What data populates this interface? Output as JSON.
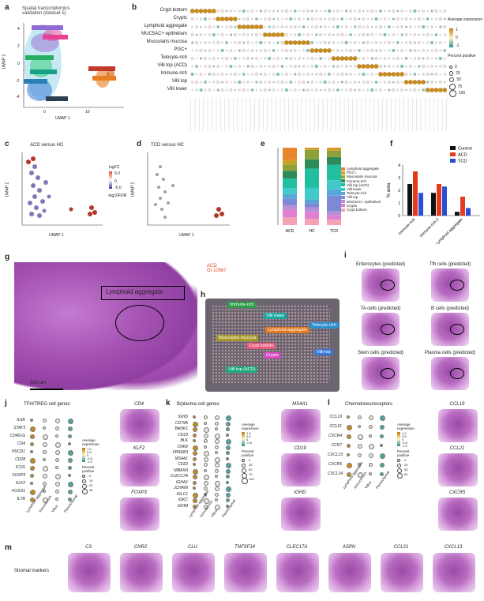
{
  "panels": {
    "a": {
      "letter": "a",
      "title_l1": "Spatial transcriptomics",
      "title_l2": "validation (dataset 5)",
      "xlabel": "UMAP 1",
      "ylabel": "UMAP 2",
      "xticks": [
        "0",
        "10"
      ],
      "yticks": [
        "4",
        "2",
        "0",
        "-2",
        "-4"
      ]
    },
    "b": {
      "letter": "b",
      "rows": [
        "Crypt bottom",
        "Crypts",
        "Lymphoid aggregate",
        "MUC5AC+ epithelium",
        "Muscularis mucosa",
        "PGC+",
        "Telocyte-rich",
        "Villi top (ACD)",
        "Immune-rich",
        "Villi top",
        "Villi lower"
      ],
      "legend_expr_title": "Average expression",
      "legend_expr_ticks": [
        "1",
        "0",
        "-1"
      ],
      "legend_pct_title": "Percent positive",
      "legend_pct_ticks": [
        "0",
        "25",
        "50",
        "75",
        "100"
      ]
    },
    "c": {
      "letter": "c",
      "title": "ACD versus HC",
      "xlabel": "UMAP 1",
      "ylabel": "UMAP 2",
      "legend_title": "logFC",
      "legend_ticks": [
        "5.0",
        "2.5",
        "0",
        "-2.5",
        "-5.0"
      ],
      "size_title": "-log10FDR",
      "size_ticks": [
        "0",
        "2",
        "4"
      ],
      "xticks": [
        "-5",
        "0",
        "5",
        "10",
        "15"
      ],
      "yticks": [
        "4",
        "2",
        "0",
        "-2",
        "-4"
      ]
    },
    "d": {
      "letter": "d",
      "title": "TCD versus HC",
      "xlabel": "UMAP 1",
      "ylabel": "UMAP 2",
      "xticks": [
        "-5",
        "0",
        "5",
        "10",
        "15"
      ],
      "yticks": [
        "4",
        "2",
        "0",
        "-2",
        "-4"
      ]
    },
    "e": {
      "letter": "e",
      "legend": [
        "Lymphoid aggregate",
        "PGC+",
        "Muscularis mucosa",
        "Immune-rich",
        "Villi top (ACD)",
        "Villi lower",
        "Telocyte-rich",
        "Villi top",
        "MUC5AC+ epithelium",
        "Crypts",
        "Crypt bottom"
      ],
      "legend_colors": [
        "#e8842a",
        "#c9a227",
        "#8fa23a",
        "#2e8b57",
        "#1fbfa0",
        "#3fc9c9",
        "#58a6d8",
        "#7c8ad6",
        "#b58fd9",
        "#e07fd0",
        "#f4a3b5"
      ],
      "categories": [
        "ACD",
        "HC",
        "TCD"
      ]
    },
    "f": {
      "letter": "f",
      "ylabel": "% area",
      "yticks": [
        "4",
        "3",
        "2",
        "1",
        "0"
      ],
      "categories": [
        "Immune-rich",
        "Immune-rich 2",
        "Lymphoid aggregate"
      ],
      "series_names": [
        "Control",
        "ACD",
        "TCD"
      ]
    },
    "g": {
      "letter": "g",
      "title_l1": "ACD",
      "title_l2": "GI 10567",
      "callout": "Lymphoid aggregate",
      "scalebar": "500 µm"
    },
    "h": {
      "letter": "h",
      "labels": [
        "Immune-rich",
        "Villi lower",
        "Telocyte-rich",
        "Lymphoid aggregate",
        "Muscularis mucosa",
        "Crypt bottom",
        "Villi top",
        "Crypts",
        "Villi top (ACD)"
      ]
    },
    "i": {
      "letter": "i",
      "titles": [
        "Enterocytes (predicted)",
        "Tfh cells (predicted)",
        "TA cells (predicted)",
        "B cells (predicted)",
        "Stem cells (predicted)",
        "Plasma cells (predicted)"
      ]
    },
    "j": {
      "letter": "j",
      "title": "TFH/TREG cell genes",
      "genes": [
        "IL6R",
        "STAT3",
        "CD40LG",
        "CD4",
        "PDCD1",
        "CD28",
        "ICOS",
        "FOXP3",
        "KLF2",
        "FOXO1",
        "IL7R"
      ],
      "xcats": [
        "Lymphoid aggregate",
        "Immune-rich",
        "Villus",
        "Parenchymal"
      ],
      "maps": [
        "CD4",
        "KLF2",
        "FOXP3"
      ],
      "expr_title": "Average expression",
      "expr_ticks": [
        "1.0",
        "0.5",
        "0",
        "-0.5",
        "-1.0"
      ],
      "pct_title": "Percent positive",
      "pct_ticks": [
        "0",
        "10",
        "20",
        "30"
      ]
    },
    "k": {
      "letter": "k",
      "title": "B/plasma cell genes",
      "genes": [
        "IGHD",
        "CD79A",
        "BANK1",
        "CD19",
        "BLK",
        "CNR2",
        "VPREB3",
        "MS4A1",
        "CD22",
        "NIBAN3",
        "CLEC17A",
        "IGHA1",
        "JCHAIN",
        "IGLC1",
        "IGKC",
        "IGHM"
      ],
      "xcats": [
        "Lymphoid aggregate",
        "Immune-rich",
        "Villus",
        "Parenchymal"
      ],
      "maps": [
        "MS4A1",
        "CD19",
        "IGHD"
      ],
      "expr_title": "Average expression",
      "expr_ticks": [
        "1.0",
        "0.5",
        "0",
        "-0.5"
      ],
      "pct_title": "Percent positive",
      "pct_ticks": [
        "0",
        "25",
        "50",
        "75",
        "100"
      ]
    },
    "l": {
      "letter": "l",
      "title": "Chemokines/receptors",
      "genes": [
        "CCL19",
        "CCL21",
        "CXCR4",
        "CCR7",
        "CXCL13",
        "CXCR5",
        "CXCL14"
      ],
      "xcats": [
        "Lymphoid aggregate",
        "Immune-rich",
        "Villus",
        "Parenchymal"
      ],
      "maps": [
        "CCL19",
        "CCL21",
        "CXCR5"
      ],
      "pct_title": "Percent positive",
      "pct_ticks": [
        "0",
        "20",
        "40",
        "60"
      ],
      "expr_title": "Average expression",
      "expr_ticks": [
        "1.0",
        "0.5",
        "0",
        "-0.5",
        "-1.0"
      ]
    },
    "m": {
      "letter": "m",
      "row_label": "Stromal markers",
      "maps": [
        "C3",
        "CNR2",
        "CLU",
        "TNFSF14",
        "CLEC17A",
        "ASPN",
        "CCL21",
        "CXCL13"
      ]
    }
  },
  "chart_data": [
    {
      "panel": "e",
      "type": "bar",
      "categories": [
        "ACD",
        "HC",
        "TCD"
      ],
      "series": [
        {
          "name": "Crypt bottom",
          "values": [
            0.1,
            0.08,
            0.07
          ]
        },
        {
          "name": "Crypts",
          "values": [
            0.1,
            0.09,
            0.06
          ]
        },
        {
          "name": "MUC5AC+ epithelium",
          "values": [
            0.06,
            0.06,
            0.05
          ]
        },
        {
          "name": "Villi top",
          "values": [
            0.08,
            0.05,
            0.2
          ]
        },
        {
          "name": "Telocyte-rich",
          "values": [
            0.06,
            0.05,
            0.08
          ]
        },
        {
          "name": "Villi lower",
          "values": [
            0.08,
            0.15,
            0.12
          ]
        },
        {
          "name": "Villi top (ACD)",
          "values": [
            0.12,
            0.25,
            0.2
          ]
        },
        {
          "name": "Immune-rich",
          "values": [
            0.1,
            0.12,
            0.1
          ]
        },
        {
          "name": "Muscularis mucosa",
          "values": [
            0.08,
            0.12,
            0.08
          ]
        },
        {
          "name": "PGC+",
          "values": [
            0.06,
            0.02,
            0.03
          ]
        },
        {
          "name": "Lymphoid aggregate",
          "values": [
            0.16,
            0.01,
            0.01
          ]
        }
      ]
    },
    {
      "panel": "f",
      "type": "bar",
      "categories": [
        "Immune-rich",
        "Immune-rich 2",
        "Lymphoid aggregate"
      ],
      "series": [
        {
          "name": "Control",
          "values": [
            2.5,
            1.8,
            0.3
          ]
        },
        {
          "name": "ACD",
          "values": [
            3.5,
            2.5,
            1.5
          ]
        },
        {
          "name": "TCD",
          "values": [
            1.8,
            2.3,
            0.6
          ]
        }
      ],
      "ylim": [
        0,
        4
      ],
      "ylabel": "% area",
      "colors": [
        "#111111",
        "#e63a1f",
        "#2a4fd6"
      ]
    }
  ]
}
